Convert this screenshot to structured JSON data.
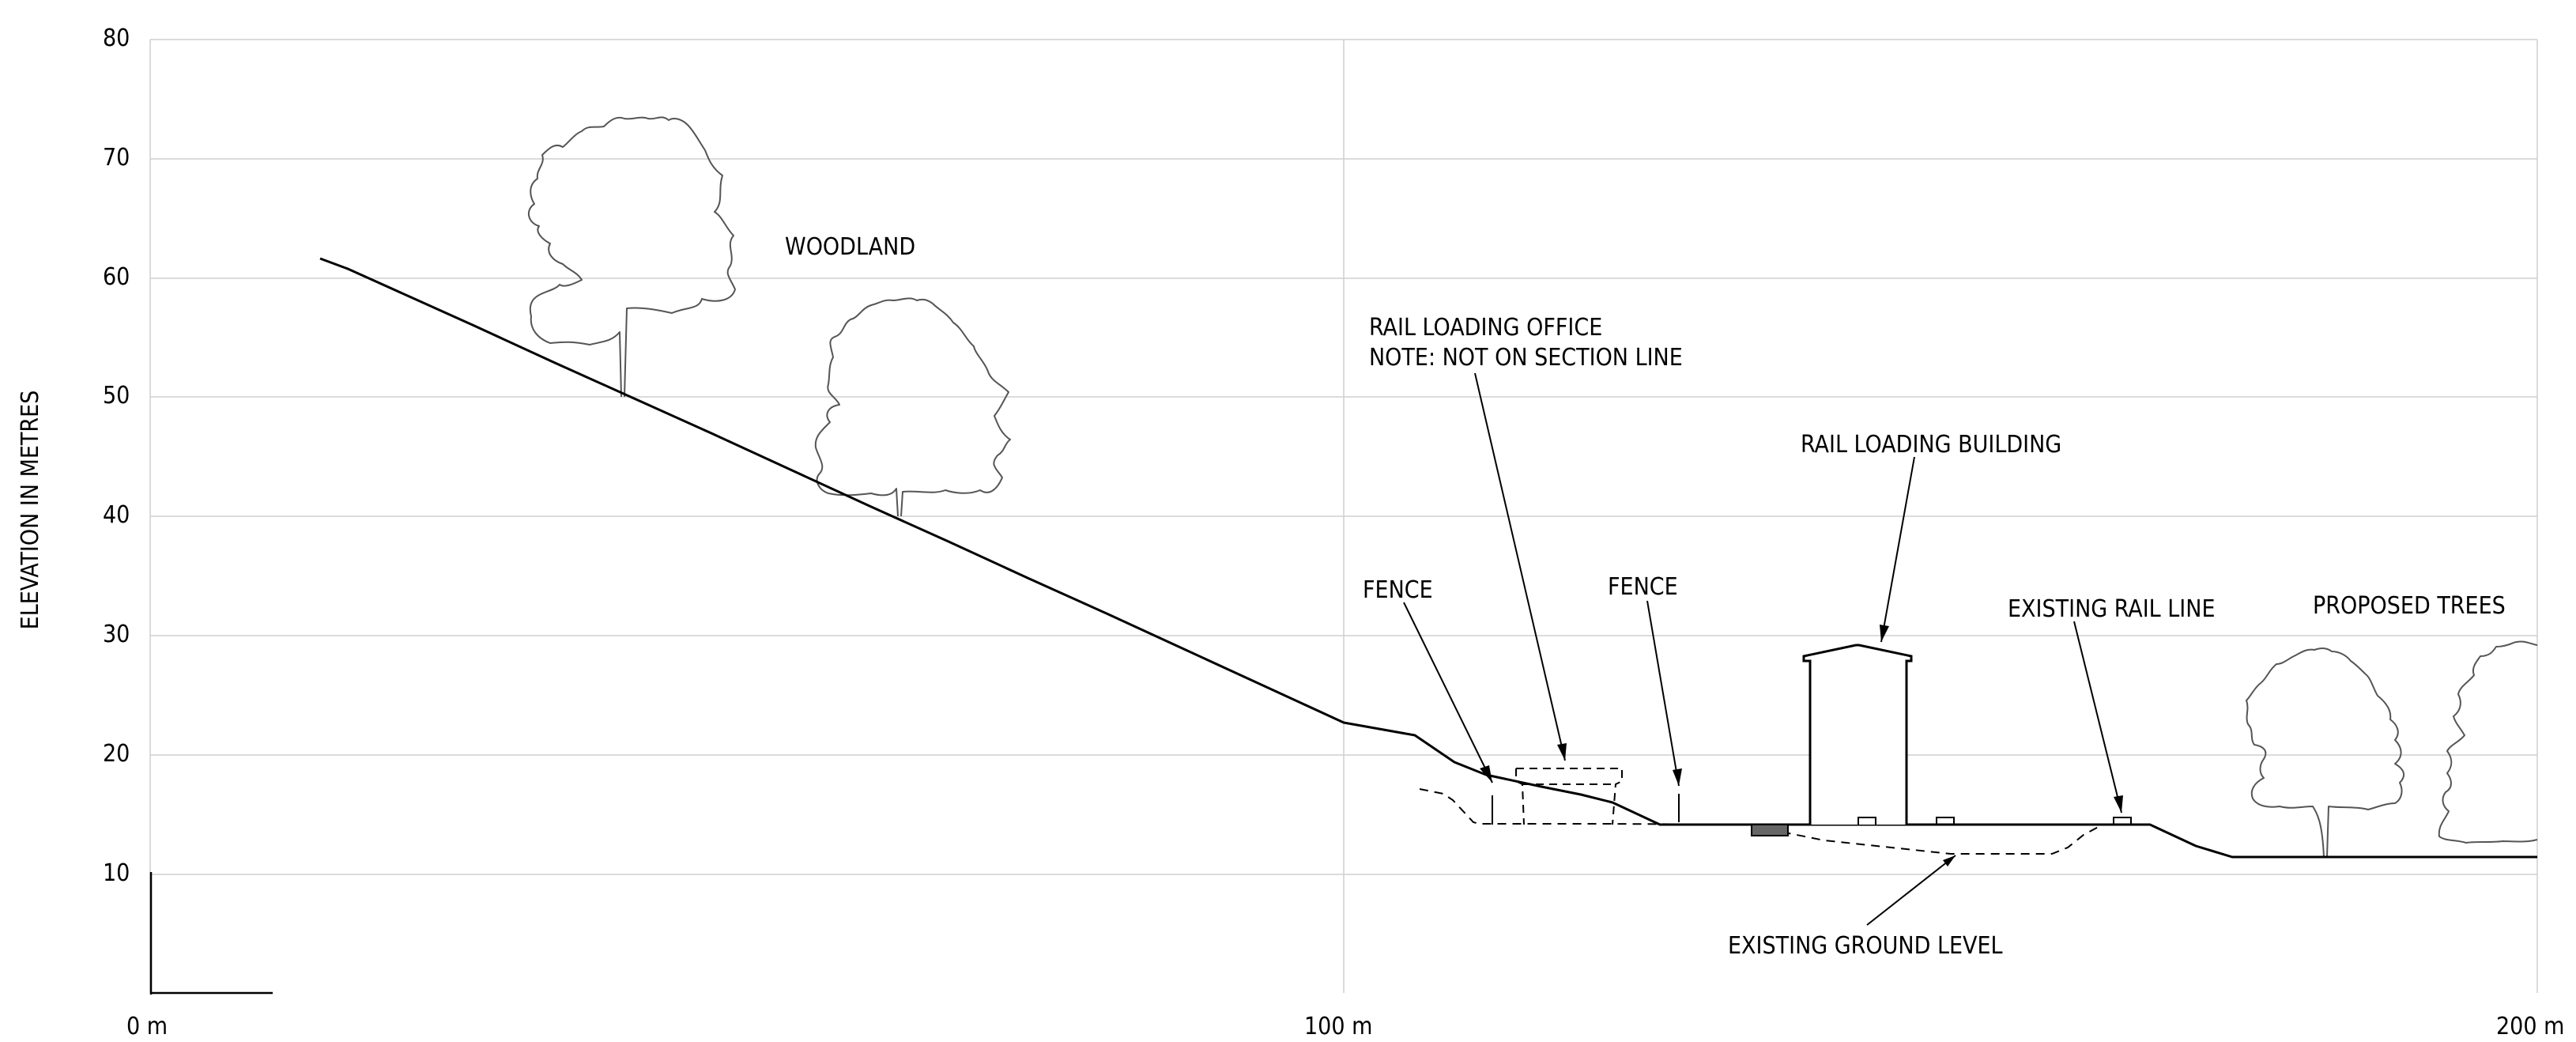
{
  "axis": {
    "y_title": "ELEVATION IN METRES",
    "y_ticks": [
      "80",
      "70",
      "60",
      "50",
      "40",
      "30",
      "20",
      "10"
    ],
    "x_ticks": [
      "0 m",
      "100 m",
      "200 m"
    ]
  },
  "labels": {
    "woodland": "WOODLAND",
    "office_line1": "RAIL LOADING OFFICE",
    "office_line2": "NOTE: NOT ON SECTION LINE",
    "rail_building": "RAIL LOADING BUILDING",
    "fence_left": "FENCE",
    "fence_right": "FENCE",
    "existing_rail": "EXISTING RAIL LINE",
    "proposed_trees": "PROPOSED TREES",
    "existing_ground": "EXISTING GROUND LEVEL"
  }
}
